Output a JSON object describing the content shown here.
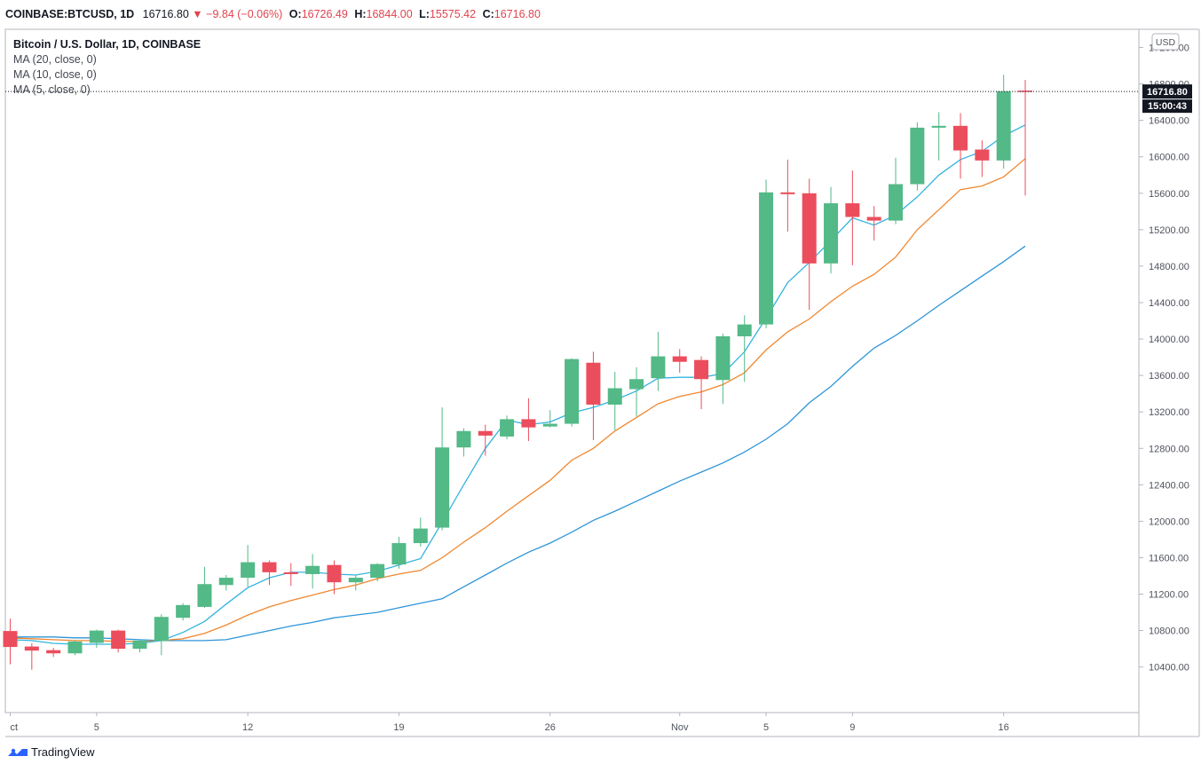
{
  "header": {
    "symbol": "COINBASE:BTCUSD",
    "interval": "1D",
    "last": "16716.80",
    "change_arrow": "▼",
    "change": "−9.84 (−0.06%)",
    "open_label": "O:",
    "open": "16726.49",
    "high_label": "H:",
    "high": "16844.00",
    "low_label": "L:",
    "low": "15575.42",
    "close_label": "C:",
    "close": "16716.80"
  },
  "legend": {
    "title": "Bitcoin / U.S. Dollar, 1D, COINBASE",
    "studies": [
      "MA (20, close, 0)",
      "MA (10, close, 0)",
      "MA (5, close, 0)"
    ]
  },
  "price_axis": {
    "currency": "USD",
    "last_price_label": "16716.80",
    "countdown": "15:00:43"
  },
  "footer": {
    "brand": "TradingView"
  },
  "colors": {
    "up": "#53b987",
    "down": "#eb4d5c",
    "ma5": "#33b4de",
    "ma10": "#f0872f",
    "ma20": "#2e95d8",
    "price_tag": "#131722"
  },
  "chart_data": {
    "type": "candlestick",
    "title": "Bitcoin / U.S. Dollar, 1D, COINBASE",
    "ylim": [
      9900,
      17400
    ],
    "y_ticks": [
      10400,
      10800,
      11200,
      11600,
      12000,
      12400,
      12800,
      13200,
      13600,
      14000,
      14400,
      14800,
      15200,
      15600,
      16000,
      16400,
      16800,
      17200
    ],
    "x_ticks": [
      {
        "index": 0,
        "label": "ct"
      },
      {
        "index": 4,
        "label": "5"
      },
      {
        "index": 11,
        "label": "12"
      },
      {
        "index": 18,
        "label": "19"
      },
      {
        "index": 25,
        "label": "26"
      },
      {
        "index": 31,
        "label": "Nov"
      },
      {
        "index": 35,
        "label": "5"
      },
      {
        "index": 39,
        "label": "9"
      },
      {
        "index": 46,
        "label": "16"
      }
    ],
    "candles": [
      {
        "o": 10795,
        "h": 10930,
        "l": 10430,
        "c": 10620
      },
      {
        "o": 10625,
        "h": 10660,
        "l": 10370,
        "c": 10580
      },
      {
        "o": 10585,
        "h": 10610,
        "l": 10510,
        "c": 10550
      },
      {
        "o": 10550,
        "h": 10690,
        "l": 10530,
        "c": 10680
      },
      {
        "o": 10665,
        "h": 10810,
        "l": 10610,
        "c": 10800
      },
      {
        "o": 10800,
        "h": 10810,
        "l": 10560,
        "c": 10600
      },
      {
        "o": 10600,
        "h": 10700,
        "l": 10560,
        "c": 10690
      },
      {
        "o": 10685,
        "h": 10980,
        "l": 10530,
        "c": 10950
      },
      {
        "o": 10940,
        "h": 11100,
        "l": 10910,
        "c": 11080
      },
      {
        "o": 11060,
        "h": 11500,
        "l": 11050,
        "c": 11310
      },
      {
        "o": 11300,
        "h": 11410,
        "l": 11240,
        "c": 11380
      },
      {
        "o": 11380,
        "h": 11740,
        "l": 11280,
        "c": 11550
      },
      {
        "o": 11550,
        "h": 11570,
        "l": 11300,
        "c": 11440
      },
      {
        "o": 11440,
        "h": 11540,
        "l": 11290,
        "c": 11420
      },
      {
        "o": 11420,
        "h": 11640,
        "l": 11260,
        "c": 11510
      },
      {
        "o": 11520,
        "h": 11570,
        "l": 11200,
        "c": 11330
      },
      {
        "o": 11330,
        "h": 11410,
        "l": 11240,
        "c": 11380
      },
      {
        "o": 11380,
        "h": 11540,
        "l": 11340,
        "c": 11530
      },
      {
        "o": 11525,
        "h": 11830,
        "l": 11480,
        "c": 11760
      },
      {
        "o": 11760,
        "h": 12040,
        "l": 11720,
        "c": 11920
      },
      {
        "o": 11930,
        "h": 13250,
        "l": 11900,
        "c": 12810
      },
      {
        "o": 12810,
        "h": 13020,
        "l": 12710,
        "c": 12990
      },
      {
        "o": 12990,
        "h": 13060,
        "l": 12720,
        "c": 12940
      },
      {
        "o": 12930,
        "h": 13160,
        "l": 12900,
        "c": 13120
      },
      {
        "o": 13120,
        "h": 13350,
        "l": 12880,
        "c": 13030
      },
      {
        "o": 13040,
        "h": 13220,
        "l": 13030,
        "c": 13070
      },
      {
        "o": 13070,
        "h": 13790,
        "l": 13040,
        "c": 13780
      },
      {
        "o": 13740,
        "h": 13860,
        "l": 12890,
        "c": 13280
      },
      {
        "o": 13280,
        "h": 13640,
        "l": 13000,
        "c": 13460
      },
      {
        "o": 13450,
        "h": 13690,
        "l": 13150,
        "c": 13560
      },
      {
        "o": 13570,
        "h": 14080,
        "l": 13430,
        "c": 13810
      },
      {
        "o": 13810,
        "h": 13890,
        "l": 13630,
        "c": 13750
      },
      {
        "o": 13770,
        "h": 13810,
        "l": 13230,
        "c": 13560
      },
      {
        "o": 13550,
        "h": 14060,
        "l": 13290,
        "c": 14030
      },
      {
        "o": 14030,
        "h": 14260,
        "l": 13530,
        "c": 14160
      },
      {
        "o": 14160,
        "h": 15750,
        "l": 14120,
        "c": 15610
      },
      {
        "o": 15610,
        "h": 15970,
        "l": 15180,
        "c": 15590
      },
      {
        "o": 15600,
        "h": 15760,
        "l": 14320,
        "c": 14830
      },
      {
        "o": 14830,
        "h": 15670,
        "l": 14720,
        "c": 15490
      },
      {
        "o": 15490,
        "h": 15850,
        "l": 14810,
        "c": 15340
      },
      {
        "o": 15340,
        "h": 15460,
        "l": 15080,
        "c": 15300
      },
      {
        "o": 15300,
        "h": 15990,
        "l": 15260,
        "c": 15700
      },
      {
        "o": 15700,
        "h": 16380,
        "l": 15630,
        "c": 16320
      },
      {
        "o": 16320,
        "h": 16490,
        "l": 15960,
        "c": 16340
      },
      {
        "o": 16340,
        "h": 16480,
        "l": 15760,
        "c": 16070
      },
      {
        "o": 16080,
        "h": 16180,
        "l": 15780,
        "c": 15960
      },
      {
        "o": 15960,
        "h": 16900,
        "l": 15870,
        "c": 16720
      },
      {
        "o": 16726.49,
        "h": 16844,
        "l": 15575.42,
        "c": 16716.8
      }
    ],
    "ma5": [
      10700,
      10690,
      10660,
      10650,
      10650,
      10650,
      10660,
      10690,
      10780,
      10900,
      11090,
      11270,
      11380,
      11440,
      11440,
      11420,
      11410,
      11450,
      11520,
      11590,
      11990,
      12400,
      12800,
      13110,
      13060,
      13090,
      13190,
      13250,
      13330,
      13430,
      13570,
      13580,
      13580,
      13620,
      13860,
      14230,
      14620,
      14840,
      15080,
      15330,
      15250,
      15360,
      15560,
      15800,
      15970,
      16060,
      16230,
      16350
    ],
    "ma10": [
      10720,
      10710,
      10700,
      10690,
      10690,
      10680,
      10680,
      10690,
      10710,
      10770,
      10860,
      10970,
      11060,
      11130,
      11190,
      11250,
      11300,
      11370,
      11420,
      11460,
      11600,
      11770,
      11930,
      12110,
      12280,
      12450,
      12670,
      12800,
      12990,
      13140,
      13290,
      13370,
      13420,
      13500,
      13630,
      13880,
      14080,
      14220,
      14410,
      14580,
      14710,
      14900,
      15200,
      15420,
      15640,
      15680,
      15780,
      15980
    ],
    "ma20": [
      10730,
      10730,
      10730,
      10720,
      10720,
      10710,
      10700,
      10690,
      10690,
      10690,
      10700,
      10750,
      10800,
      10850,
      10890,
      10940,
      10970,
      11000,
      11050,
      11100,
      11150,
      11280,
      11410,
      11540,
      11660,
      11760,
      11880,
      12010,
      12110,
      12220,
      12330,
      12440,
      12540,
      12640,
      12760,
      12900,
      13070,
      13300,
      13480,
      13700,
      13900,
      14040,
      14200,
      14370,
      14530,
      14690,
      14850,
      15020
    ]
  }
}
